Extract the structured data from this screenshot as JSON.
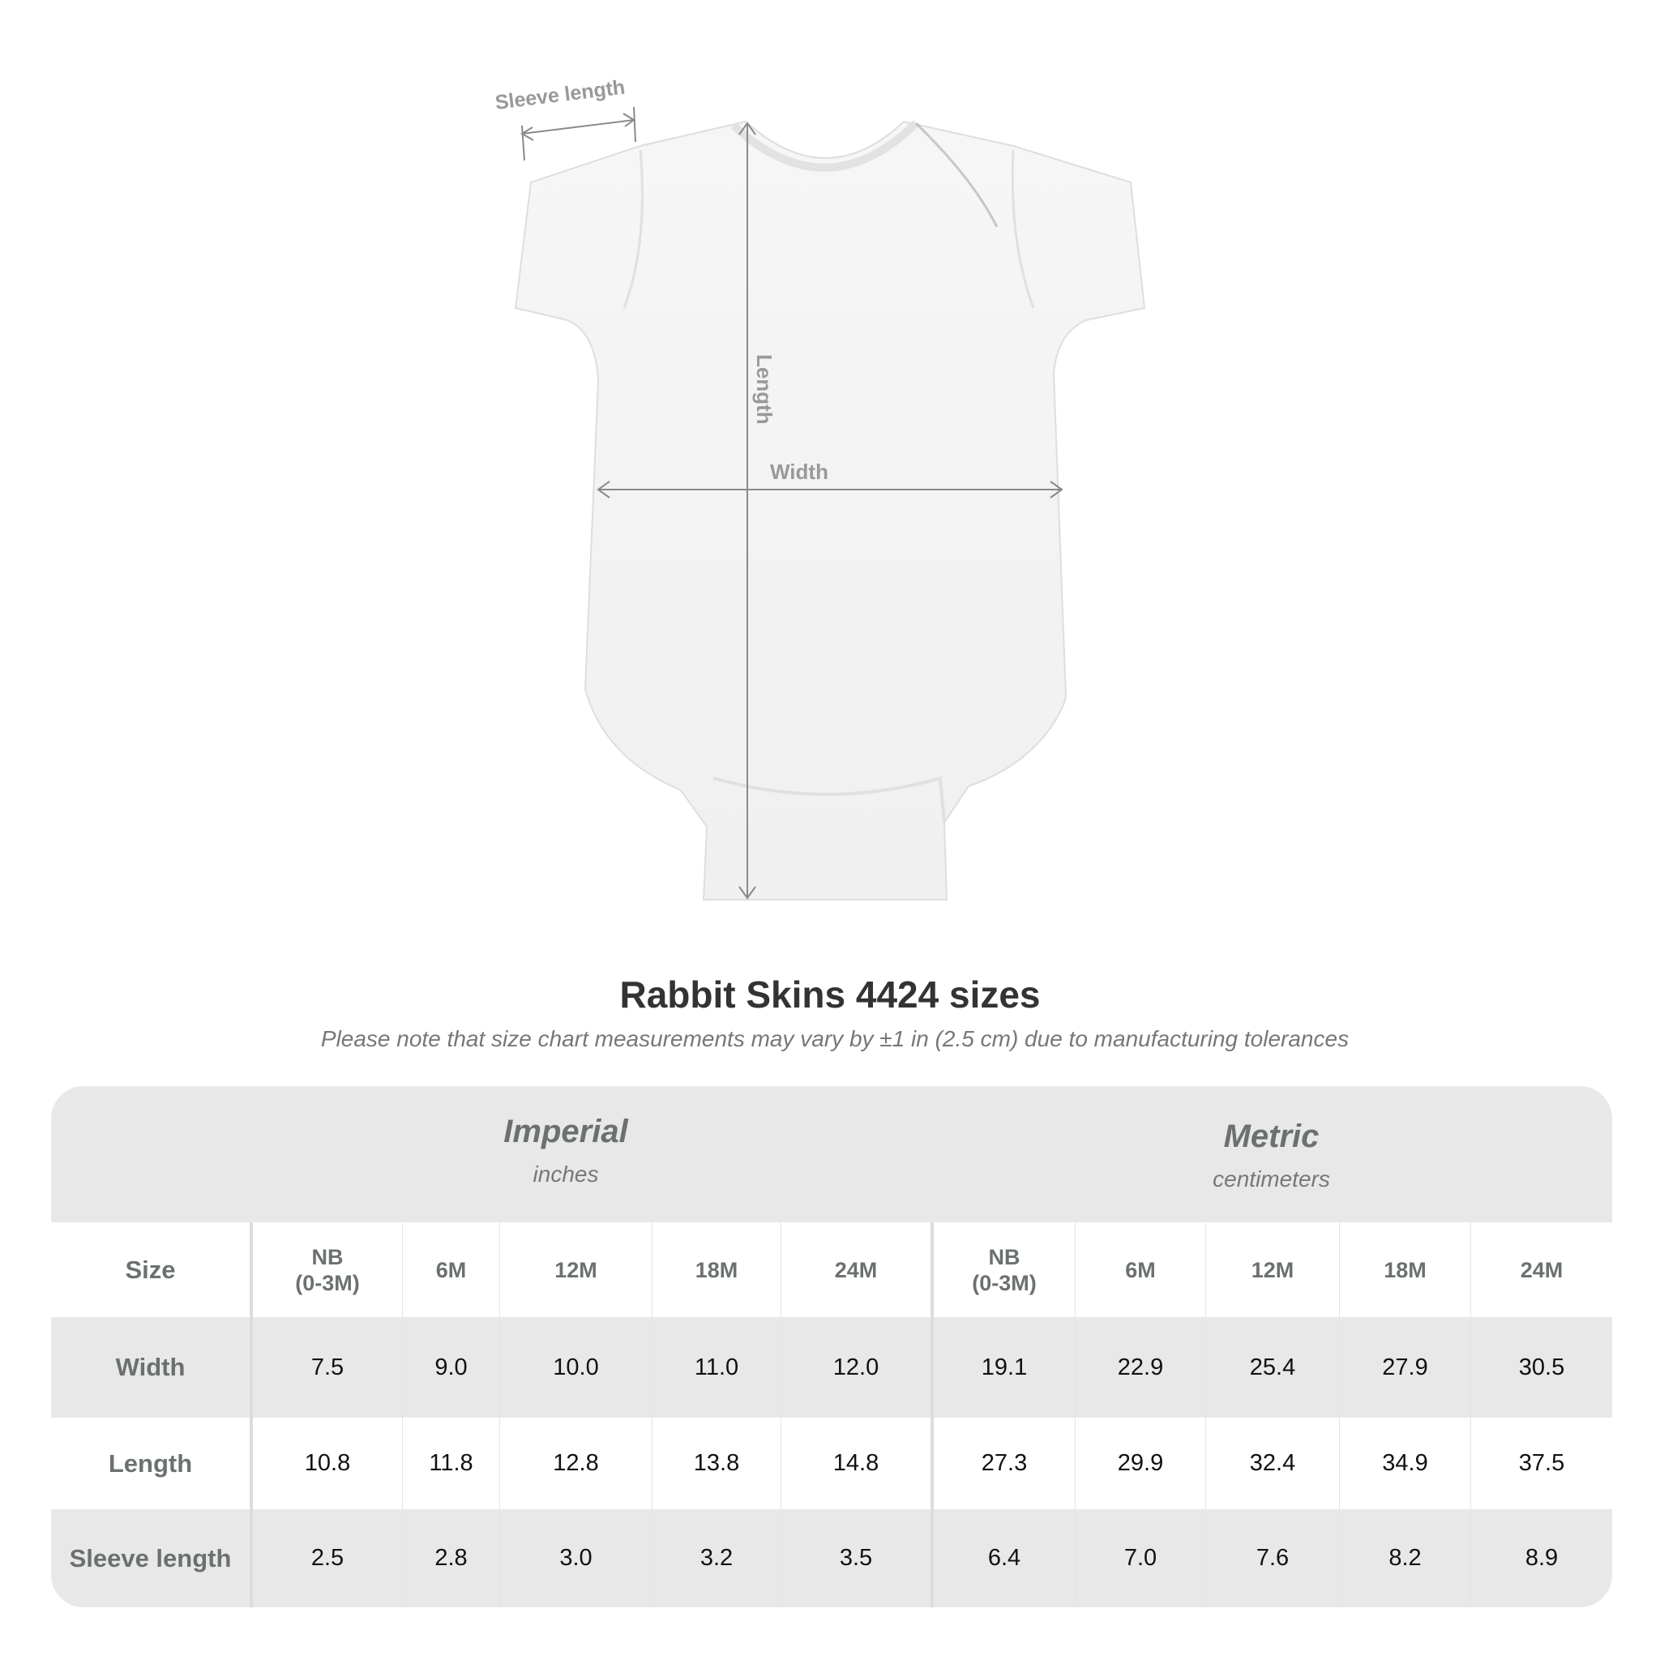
{
  "diagram": {
    "labels": {
      "sleeve": "Sleeve length",
      "length": "Length",
      "width": "Width"
    },
    "garment_color": "#f4f4f4",
    "arrow_color": "#8a8a8a"
  },
  "title": "Rabbit Skins 4424 sizes",
  "subtitle": "Please note that size chart measurements may vary by ±1 in (2.5 cm) due to manufacturing tolerances",
  "table": {
    "imperial": {
      "label": "Imperial",
      "unit": "inches"
    },
    "metric": {
      "label": "Metric",
      "unit": "centimeters"
    },
    "size_label": "Size",
    "sizes": [
      "NB\n(0-3M)",
      "6M",
      "12M",
      "18M",
      "24M"
    ],
    "rows": [
      {
        "label": "Width",
        "imperial": [
          "7.5",
          "9.0",
          "10.0",
          "11.0",
          "12.0"
        ],
        "metric": [
          "19.1",
          "22.9",
          "25.4",
          "27.9",
          "30.5"
        ]
      },
      {
        "label": "Length",
        "imperial": [
          "10.8",
          "11.8",
          "12.8",
          "13.8",
          "14.8"
        ],
        "metric": [
          "27.3",
          "29.9",
          "32.4",
          "34.9",
          "37.5"
        ]
      },
      {
        "label": "Sleeve length",
        "imperial": [
          "2.5",
          "2.8",
          "3.0",
          "3.2",
          "3.5"
        ],
        "metric": [
          "6.4",
          "7.0",
          "7.6",
          "8.2",
          "8.9"
        ]
      }
    ],
    "colors": {
      "band": "#e8e8e8",
      "header_text": "#6b7070"
    }
  }
}
